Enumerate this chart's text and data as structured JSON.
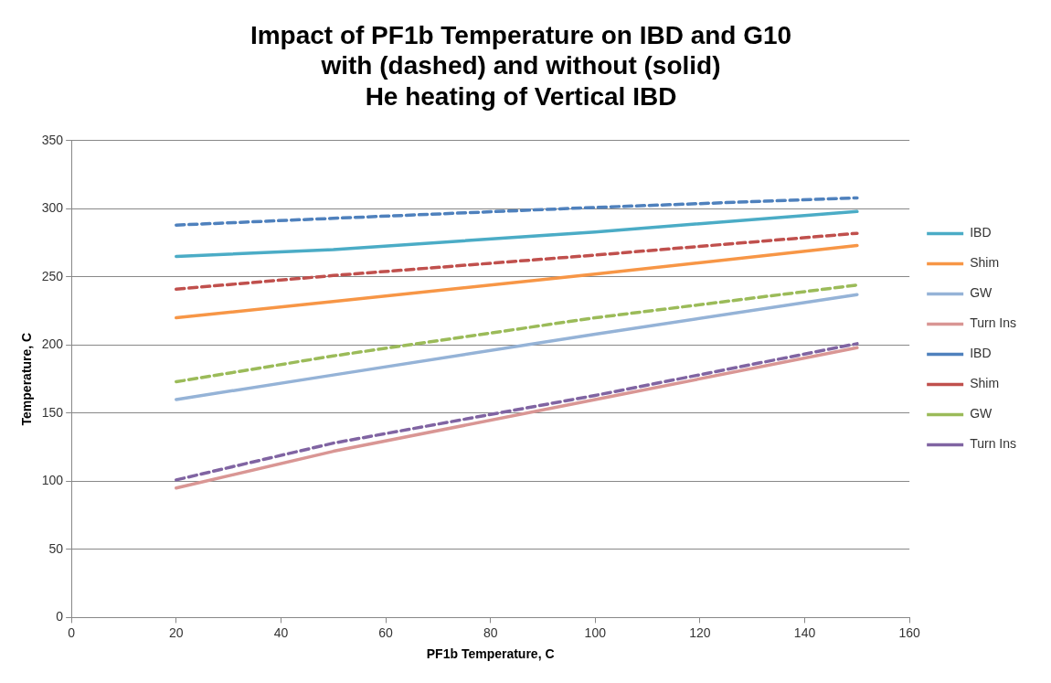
{
  "chart_data": {
    "type": "line",
    "title": "Impact of PF1b Temperature on IBD and G10\nwith (dashed) and without (solid)\nHe heating of Vertical IBD",
    "xlabel": "PF1b Temperature, C",
    "ylabel": "Temperature, C",
    "x": [
      20,
      50,
      100,
      150
    ],
    "series": [
      {
        "name": "IBD",
        "color": "#4bacc6",
        "line_style": "solid",
        "values": [
          265,
          270,
          283,
          298
        ]
      },
      {
        "name": "Shim",
        "color": "#f79646",
        "line_style": "solid",
        "values": [
          220,
          232,
          252,
          273
        ]
      },
      {
        "name": "GW",
        "color": "#95b3d7",
        "line_style": "solid",
        "values": [
          160,
          178,
          208,
          237
        ]
      },
      {
        "name": "Turn Ins",
        "color": "#d99694",
        "line_style": "solid",
        "values": [
          95,
          122,
          160,
          198
        ]
      },
      {
        "name": "IBD",
        "color": "#4f81bd",
        "line_style": "dashed",
        "values": [
          288,
          293,
          301,
          308
        ]
      },
      {
        "name": "Shim",
        "color": "#c0504d",
        "line_style": "dashed",
        "values": [
          241,
          251,
          266,
          282
        ]
      },
      {
        "name": "GW",
        "color": "#9bbb59",
        "line_style": "dashed",
        "values": [
          173,
          192,
          220,
          244
        ]
      },
      {
        "name": "Turn Ins",
        "color": "#8064a2",
        "line_style": "dashed",
        "values": [
          101,
          128,
          163,
          201
        ]
      }
    ],
    "xlim": [
      0,
      160
    ],
    "xticks": [
      0,
      20,
      40,
      60,
      80,
      100,
      120,
      140,
      160
    ],
    "ylim": [
      0,
      350
    ],
    "yticks": [
      0,
      50,
      100,
      150,
      200,
      250,
      300,
      350
    ],
    "grid": "y",
    "legend": "right",
    "marker": "none"
  }
}
